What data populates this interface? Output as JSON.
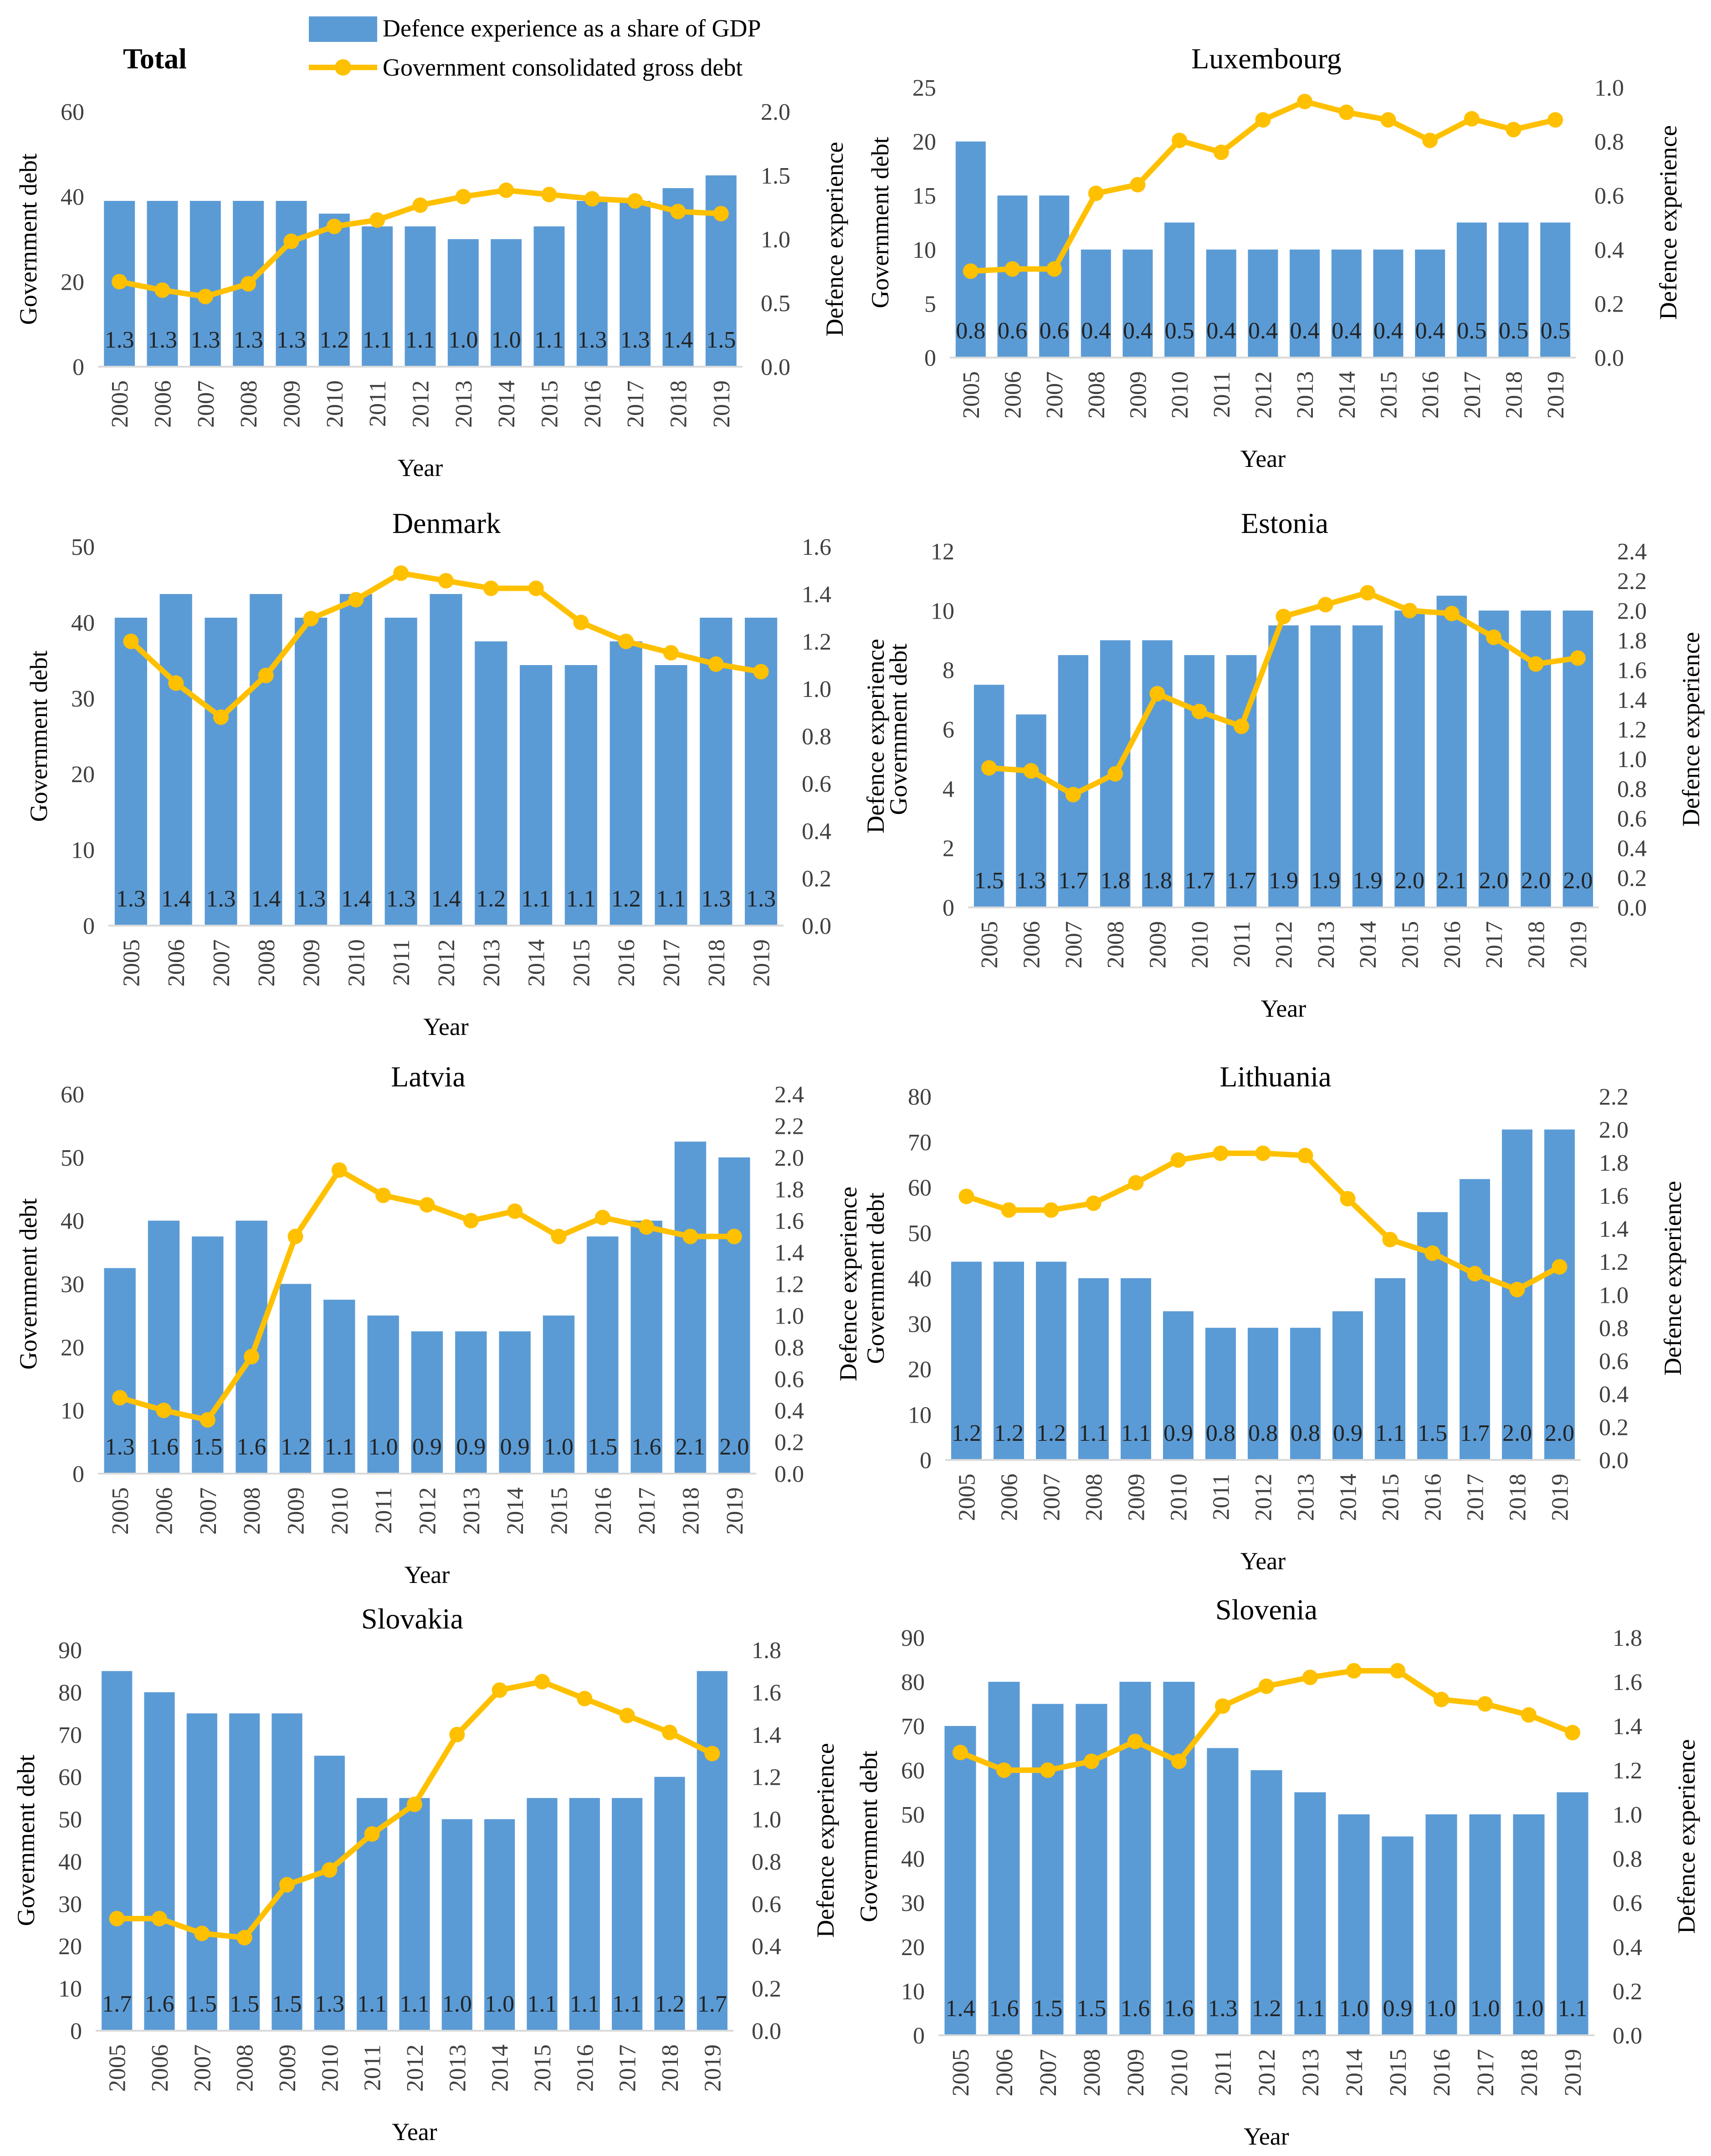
{
  "legend": {
    "bar_label": "Defence experience as a share of GDP",
    "line_label": "Government consolidated gross debt"
  },
  "colors": {
    "bar": "#5b9bd5",
    "line": "#ffc000",
    "axis": "#d9d9d9"
  },
  "chart_data": [
    {
      "type": "bar+line",
      "title": "Total",
      "title_bold": true,
      "xlabel": "Year",
      "ylabel": "Government debt",
      "y2label": "Defence experience",
      "categories": [
        "2005",
        "2006",
        "2007",
        "2008",
        "2009",
        "2010",
        "2011",
        "2012",
        "2013",
        "2014",
        "2015",
        "2016",
        "2017",
        "2018",
        "2019"
      ],
      "ylim": [
        0,
        60
      ],
      "yticks": [
        "0",
        "20",
        "40",
        "60"
      ],
      "y2lim": [
        0,
        2.0
      ],
      "y2ticks": [
        "0.0",
        "0.5",
        "1.0",
        "1.5",
        "2.0"
      ],
      "bar_values": [
        1.3,
        1.3,
        1.3,
        1.3,
        1.3,
        1.2,
        1.1,
        1.1,
        1.0,
        1.0,
        1.1,
        1.3,
        1.3,
        1.4,
        1.5
      ],
      "bar_labels": [
        "1.3",
        "1.3",
        "1.3",
        "1.3",
        "1.3",
        "1.2",
        "1.1",
        "1.1",
        "1.0",
        "1.0",
        "1.1",
        "1.3",
        "1.3",
        "1.4",
        "1.5"
      ],
      "line_values": [
        20,
        18,
        16.5,
        19.5,
        29.5,
        33,
        34.5,
        38,
        40,
        41.5,
        40.5,
        39.5,
        39,
        36.5,
        36
      ]
    },
    {
      "type": "bar+line",
      "title": "Luxembourg",
      "title_bold": false,
      "xlabel": "Year",
      "ylabel": "Government debt",
      "y2label": "Defence experience",
      "categories": [
        "2005",
        "2006",
        "2007",
        "2008",
        "2009",
        "2010",
        "2011",
        "2012",
        "2013",
        "2014",
        "2015",
        "2016",
        "2017",
        "2018",
        "2019"
      ],
      "ylim": [
        0,
        25
      ],
      "yticks": [
        "0",
        "5",
        "10",
        "15",
        "20",
        "25"
      ],
      "y2lim": [
        0,
        1.0
      ],
      "y2ticks": [
        "0.0",
        "0.2",
        "0.4",
        "0.6",
        "0.8",
        "1.0"
      ],
      "bar_values": [
        0.8,
        0.6,
        0.6,
        0.4,
        0.4,
        0.5,
        0.4,
        0.4,
        0.4,
        0.4,
        0.4,
        0.4,
        0.5,
        0.5,
        0.5
      ],
      "bar_labels": [
        "0.8",
        "0.6",
        "0.6",
        "0.4",
        "0.4",
        "0.5",
        "0.4",
        "0.4",
        "0.4",
        "0.4",
        "0.4",
        "0.4",
        "0.5",
        "0.5",
        "0.5"
      ],
      "line_values": [
        8,
        8.2,
        8.2,
        15.2,
        16,
        20.1,
        19,
        22,
        23.7,
        22.7,
        22,
        20.1,
        22.1,
        21.1,
        22
      ]
    },
    {
      "type": "bar+line",
      "title": "Denmark",
      "title_bold": false,
      "xlabel": "Year",
      "ylabel": "Government debt",
      "y2label": "Defence experience",
      "categories": [
        "2005",
        "2006",
        "2007",
        "2008",
        "2009",
        "2010",
        "2011",
        "2012",
        "2013",
        "2014",
        "2015",
        "2016",
        "2017",
        "2018",
        "2019"
      ],
      "ylim": [
        0,
        50
      ],
      "yticks": [
        "0",
        "10",
        "20",
        "30",
        "40",
        "50"
      ],
      "y2lim": [
        0,
        1.6
      ],
      "y2ticks": [
        "0.0",
        "0.2",
        "0.4",
        "0.6",
        "0.8",
        "1.0",
        "1.2",
        "1.4",
        "1.6"
      ],
      "bar_values": [
        1.3,
        1.4,
        1.3,
        1.4,
        1.3,
        1.4,
        1.3,
        1.4,
        1.2,
        1.1,
        1.1,
        1.2,
        1.1,
        1.3,
        1.3
      ],
      "bar_labels": [
        "1.3",
        "1.4",
        "1.3",
        "1.4",
        "1.3",
        "1.4",
        "1.3",
        "1.4",
        "1.2",
        "1.1",
        "1.1",
        "1.2",
        "1.1",
        "1.3",
        "1.3"
      ],
      "line_values": [
        37.5,
        32,
        27.5,
        33,
        40.5,
        43,
        46.5,
        45.5,
        44.5,
        44.5,
        40,
        37.5,
        36,
        34.5,
        33.5
      ]
    },
    {
      "type": "bar+line",
      "title": "Estonia",
      "title_bold": false,
      "xlabel": "Year",
      "ylabel": "Government debt",
      "y2label": "Defence experience",
      "categories": [
        "2005",
        "2006",
        "2007",
        "2008",
        "2009",
        "2010",
        "2011",
        "2012",
        "2013",
        "2014",
        "2015",
        "2016",
        "2017",
        "2018",
        "2019"
      ],
      "ylim": [
        0,
        12
      ],
      "yticks": [
        "0",
        "2",
        "4",
        "6",
        "8",
        "10",
        "12"
      ],
      "y2lim": [
        0,
        2.4
      ],
      "y2ticks": [
        "0.0",
        "0.2",
        "0.4",
        "0.6",
        "0.8",
        "1.0",
        "1.2",
        "1.4",
        "1.6",
        "1.8",
        "2.0",
        "2.2",
        "2.4"
      ],
      "bar_values": [
        1.5,
        1.3,
        1.7,
        1.8,
        1.8,
        1.7,
        1.7,
        1.9,
        1.9,
        1.9,
        2.0,
        2.1,
        2.0,
        2.0,
        2.0
      ],
      "bar_labels": [
        "1.5",
        "1.3",
        "1.7",
        "1.8",
        "1.8",
        "1.7",
        "1.7",
        "1.9",
        "1.9",
        "1.9",
        "2.0",
        "2.1",
        "2.0",
        "2.0",
        "2.0"
      ],
      "line_values": [
        4.7,
        4.6,
        3.8,
        4.5,
        7.2,
        6.6,
        6.1,
        9.8,
        10.2,
        10.6,
        10,
        9.9,
        9.1,
        8.2,
        8.4
      ]
    },
    {
      "type": "bar+line",
      "title": "Latvia",
      "title_bold": false,
      "xlabel": "Year",
      "ylabel": "Government debt",
      "y2label": "Defence experience",
      "categories": [
        "2005",
        "2006",
        "2007",
        "2008",
        "2009",
        "2010",
        "2011",
        "2012",
        "2013",
        "2014",
        "2015",
        "2016",
        "2017",
        "2018",
        "2019"
      ],
      "ylim": [
        0,
        60
      ],
      "yticks": [
        "0",
        "10",
        "20",
        "30",
        "40",
        "50",
        "60"
      ],
      "y2lim": [
        0,
        2.4
      ],
      "y2ticks": [
        "0.0",
        "0.2",
        "0.4",
        "0.6",
        "0.8",
        "1.0",
        "1.2",
        "1.4",
        "1.6",
        "1.8",
        "2.0",
        "2.2",
        "2.4"
      ],
      "bar_values": [
        1.3,
        1.6,
        1.5,
        1.6,
        1.2,
        1.1,
        1.0,
        0.9,
        0.9,
        0.9,
        1.0,
        1.5,
        1.6,
        2.1,
        2.0
      ],
      "bar_labels": [
        "1.3",
        "1.6",
        "1.5",
        "1.6",
        "1.2",
        "1.1",
        "1.0",
        "0.9",
        "0.9",
        "0.9",
        "1.0",
        "1.5",
        "1.6",
        "2.1",
        "2.0"
      ],
      "line_values": [
        12,
        10,
        8.5,
        18.5,
        37.5,
        48,
        44,
        42.5,
        40,
        41.5,
        37.5,
        40.5,
        39,
        37.5,
        37.5
      ]
    },
    {
      "type": "bar+line",
      "title": "Lithuania",
      "title_bold": false,
      "xlabel": "Year",
      "ylabel": "Government debt",
      "y2label": "Defence experience",
      "categories": [
        "2005",
        "2006",
        "2007",
        "2008",
        "2009",
        "2010",
        "2011",
        "2012",
        "2013",
        "2014",
        "2015",
        "2016",
        "2017",
        "2018",
        "2019"
      ],
      "ylim": [
        0,
        80
      ],
      "yticks": [
        "0",
        "10",
        "20",
        "30",
        "40",
        "50",
        "60",
        "70",
        "80"
      ],
      "y2lim": [
        0,
        2.2
      ],
      "y2ticks": [
        "0.0",
        "0.2",
        "0.4",
        "0.6",
        "0.8",
        "1.0",
        "1.2",
        "1.4",
        "1.6",
        "1.8",
        "2.0",
        "2.2"
      ],
      "bar_values": [
        1.2,
        1.2,
        1.2,
        1.1,
        1.1,
        0.9,
        0.8,
        0.8,
        0.8,
        0.9,
        1.1,
        1.5,
        1.7,
        2.0,
        2.0
      ],
      "bar_labels": [
        "1.2",
        "1.2",
        "1.2",
        "1.1",
        "1.1",
        "0.9",
        "0.8",
        "0.8",
        "0.8",
        "0.9",
        "1.1",
        "1.5",
        "1.7",
        "2.0",
        "2.0"
      ],
      "line_values": [
        58,
        55,
        55,
        56.5,
        61,
        66,
        67.5,
        67.5,
        67,
        57.5,
        48.5,
        45.5,
        41,
        37.5,
        42.5
      ]
    },
    {
      "type": "bar+line",
      "title": "Slovakia",
      "title_bold": false,
      "xlabel": "Year",
      "ylabel": "Government debt",
      "y2label": "Defence experience",
      "categories": [
        "2005",
        "2006",
        "2007",
        "2008",
        "2009",
        "2010",
        "2011",
        "2012",
        "2013",
        "2014",
        "2015",
        "2016",
        "2017",
        "2018",
        "2019"
      ],
      "ylim": [
        0,
        90
      ],
      "yticks": [
        "0",
        "10",
        "20",
        "30",
        "40",
        "50",
        "60",
        "70",
        "80",
        "90"
      ],
      "y2lim": [
        0,
        1.8
      ],
      "y2ticks": [
        "0.0",
        "0.2",
        "0.4",
        "0.6",
        "0.8",
        "1.0",
        "1.2",
        "1.4",
        "1.6",
        "1.8"
      ],
      "bar_values": [
        1.7,
        1.6,
        1.5,
        1.5,
        1.5,
        1.3,
        1.1,
        1.1,
        1.0,
        1.0,
        1.1,
        1.1,
        1.1,
        1.2,
        1.7
      ],
      "bar_labels": [
        "1.7",
        "1.6",
        "1.5",
        "1.5",
        "1.5",
        "1.3",
        "1.1",
        "1.1",
        "1.0",
        "1.0",
        "1.1",
        "1.1",
        "1.1",
        "1.2",
        "1.7"
      ],
      "line_values": [
        26.5,
        26.5,
        23,
        22,
        34.5,
        38,
        46.5,
        53.5,
        70,
        80.5,
        82.5,
        78.5,
        74.5,
        70.5,
        65.5
      ]
    },
    {
      "type": "bar+line",
      "title": "Slovenia",
      "title_bold": false,
      "xlabel": "Year",
      "ylabel": "Government debt",
      "y2label": "Defence experience",
      "categories": [
        "2005",
        "2006",
        "2007",
        "2008",
        "2009",
        "2010",
        "2011",
        "2012",
        "2013",
        "2014",
        "2015",
        "2016",
        "2017",
        "2018",
        "2019"
      ],
      "ylim": [
        0,
        90
      ],
      "yticks": [
        "0",
        "10",
        "20",
        "30",
        "40",
        "50",
        "60",
        "70",
        "80",
        "90"
      ],
      "y2lim": [
        0,
        1.8
      ],
      "y2ticks": [
        "0.0",
        "0.2",
        "0.4",
        "0.6",
        "0.8",
        "1.0",
        "1.2",
        "1.4",
        "1.6",
        "1.8"
      ],
      "bar_values": [
        1.4,
        1.6,
        1.5,
        1.5,
        1.6,
        1.6,
        1.3,
        1.2,
        1.1,
        1.0,
        0.9,
        1.0,
        1.0,
        1.0,
        1.1
      ],
      "bar_labels": [
        "1.4",
        "1.6",
        "1.5",
        "1.5",
        "1.6",
        "1.6",
        "1.3",
        "1.2",
        "1.1",
        "1.0",
        "0.9",
        "1.0",
        "1.0",
        "1.0",
        "1.1"
      ],
      "line_values": [
        64,
        60,
        60,
        62,
        66.5,
        62,
        74.5,
        79,
        81,
        82.5,
        82.5,
        76,
        75,
        72.5,
        68.5
      ]
    }
  ]
}
